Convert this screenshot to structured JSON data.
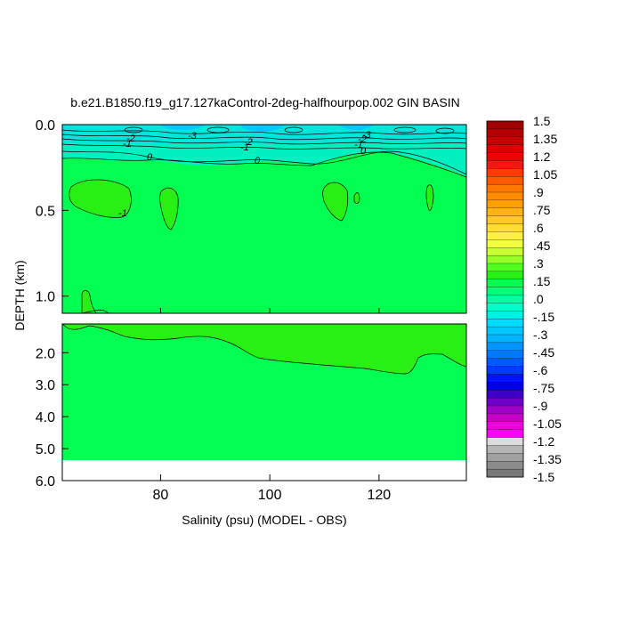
{
  "chart_data": {
    "type": "heatmap",
    "title": "b.e21.B1850.f19_g17.127kaControl-2deg-halfhourpop.002 GIN BASIN",
    "xlabel": "Salinity (psu) (MODEL - OBS)",
    "ylabel": "DEPTH (km)",
    "x_range": [
      62,
      136
    ],
    "x_ticks": [
      80,
      100,
      120
    ],
    "upper_panel": {
      "y_range": [
        0.0,
        1.1
      ],
      "y_ticks": [
        "0.0",
        "0.5",
        "1.0"
      ]
    },
    "lower_panel": {
      "y_range": [
        1.1,
        6.0
      ],
      "y_ticks": [
        "2.0",
        "3.0",
        "4.0",
        "5.0",
        "6.0"
      ]
    },
    "contour_labels": [
      "-3",
      "-2",
      "-1",
      "0",
      "-2",
      "-1",
      "0",
      "-3",
      "-2",
      "-1",
      "0",
      "-1"
    ],
    "colorbar": {
      "labels": [
        "1.5",
        "1.35",
        "1.2",
        "1.05",
        ".9",
        ".75",
        ".6",
        ".45",
        ".3",
        ".15",
        ".0",
        "-.15",
        "-.3",
        "-.45",
        "-.6",
        "-.75",
        "-.9",
        "-1.05",
        "-1.2",
        "-1.35",
        "-1.5"
      ],
      "colors": [
        "#a00000",
        "#b40000",
        "#c80000",
        "#dc0000",
        "#f00000",
        "#ff1414",
        "#ff3c00",
        "#ff5a00",
        "#ff7800",
        "#ff8c00",
        "#ffa000",
        "#ffb414",
        "#ffc828",
        "#ffdc32",
        "#ffef40",
        "#f0ff40",
        "#c8ff32",
        "#96ff28",
        "#50ff1e",
        "#28f014",
        "#00ff50",
        "#00ff78",
        "#00ffa0",
        "#00ffc8",
        "#00f0e6",
        "#00dcff",
        "#00c8ff",
        "#00b4ff",
        "#0096ff",
        "#0078ff",
        "#005aff",
        "#003cff",
        "#0014ff",
        "#0000dc",
        "#3c00c8",
        "#6e00c8",
        "#a000c8",
        "#c800c8",
        "#f000dc",
        "#ff00ff",
        "#dcdcdc",
        "#b4b4b4",
        "#a0a0a0",
        "#8c8c8c",
        "#787878"
      ]
    }
  }
}
